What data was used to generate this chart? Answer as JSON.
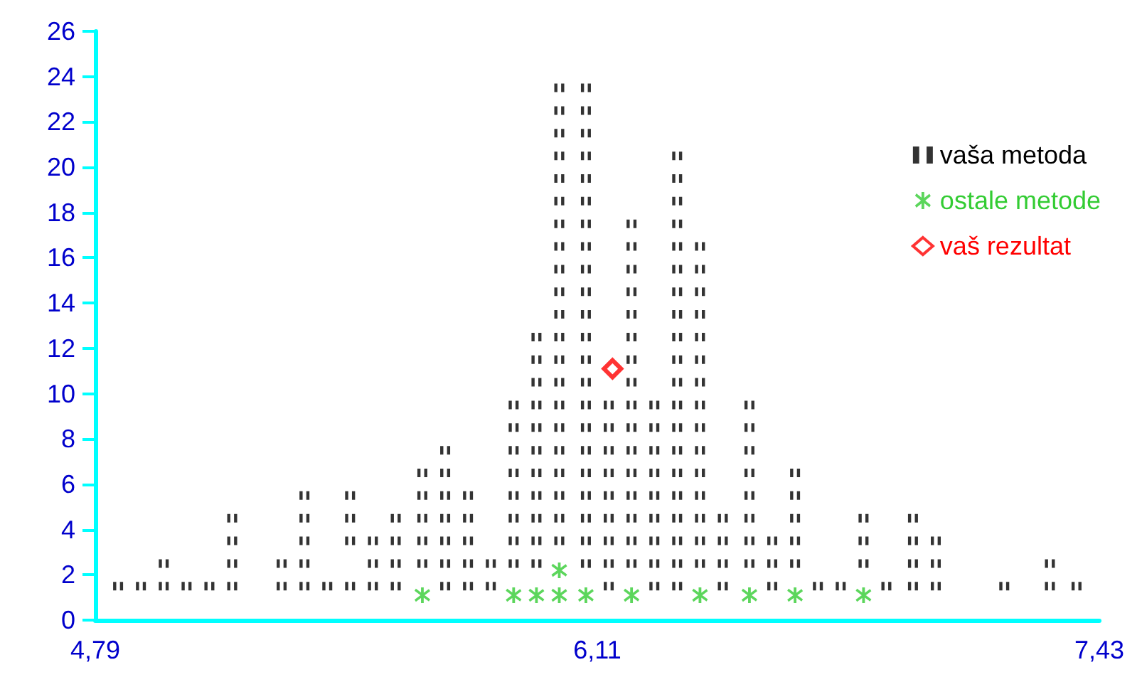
{
  "chart_data": {
    "type": "scatter",
    "xlim": [
      4.79,
      7.43
    ],
    "xticks": [
      {
        "value": 4.79,
        "label": "4,79"
      },
      {
        "value": 6.11,
        "label": "6,11"
      },
      {
        "value": 7.43,
        "label": "7,43"
      }
    ],
    "ylim": [
      0,
      26
    ],
    "yticks": [
      0,
      2,
      4,
      6,
      8,
      10,
      12,
      14,
      16,
      18,
      20,
      22,
      24,
      26
    ],
    "grid": false,
    "legend": "top right",
    "series": [
      {
        "name": "vaša metoda",
        "color": "#000000",
        "marker": "square",
        "x": [
          4.85,
          4.91,
          4.97,
          4.97,
          5.03,
          5.09,
          5.15,
          5.15,
          5.15,
          5.15,
          5.28,
          5.28,
          5.34,
          5.34,
          5.34,
          5.34,
          5.34,
          5.4,
          5.46,
          5.46,
          5.46,
          5.46,
          5.52,
          5.52,
          5.52,
          5.58,
          5.58,
          5.58,
          5.58,
          5.65,
          5.65,
          5.65,
          5.65,
          5.65,
          5.71,
          5.71,
          5.71,
          5.71,
          5.71,
          5.71,
          5.71,
          5.77,
          5.77,
          5.77,
          5.77,
          5.77,
          5.83,
          5.83,
          5.89,
          5.89,
          5.89,
          5.89,
          5.89,
          5.89,
          5.89,
          5.89,
          5.95,
          5.95,
          5.95,
          5.95,
          5.95,
          5.95,
          5.95,
          5.95,
          5.95,
          5.95,
          5.95,
          6.01,
          6.01,
          6.01,
          6.01,
          6.01,
          6.01,
          6.01,
          6.01,
          6.01,
          6.01,
          6.01,
          6.01,
          6.01,
          6.01,
          6.01,
          6.01,
          6.01,
          6.01,
          6.01,
          6.01,
          6.01,
          6.08,
          6.08,
          6.08,
          6.08,
          6.08,
          6.08,
          6.08,
          6.08,
          6.08,
          6.08,
          6.08,
          6.08,
          6.08,
          6.08,
          6.08,
          6.08,
          6.08,
          6.08,
          6.08,
          6.08,
          6.08,
          6.08,
          6.14,
          6.14,
          6.14,
          6.14,
          6.14,
          6.14,
          6.14,
          6.14,
          6.14,
          6.2,
          6.2,
          6.2,
          6.2,
          6.2,
          6.2,
          6.2,
          6.2,
          6.2,
          6.2,
          6.2,
          6.2,
          6.2,
          6.2,
          6.2,
          6.2,
          6.26,
          6.26,
          6.26,
          6.26,
          6.26,
          6.26,
          6.26,
          6.26,
          6.26,
          6.32,
          6.32,
          6.32,
          6.32,
          6.32,
          6.32,
          6.32,
          6.32,
          6.32,
          6.32,
          6.32,
          6.32,
          6.32,
          6.32,
          6.32,
          6.32,
          6.32,
          6.32,
          6.32,
          6.32,
          6.38,
          6.38,
          6.38,
          6.38,
          6.38,
          6.38,
          6.38,
          6.38,
          6.38,
          6.38,
          6.38,
          6.38,
          6.38,
          6.38,
          6.38,
          6.44,
          6.44,
          6.44,
          6.44,
          6.51,
          6.51,
          6.51,
          6.51,
          6.51,
          6.51,
          6.51,
          6.51,
          6.57,
          6.57,
          6.57,
          6.63,
          6.63,
          6.63,
          6.63,
          6.63,
          6.69,
          6.75,
          6.81,
          6.81,
          6.81,
          6.87,
          6.94,
          6.94,
          6.94,
          6.94,
          7.0,
          7.0,
          7.0,
          7.18,
          7.3,
          7.3,
          7.37
        ],
        "values": [
          1.5,
          1.5,
          1.5,
          2.5,
          1.5,
          1.5,
          1.5,
          2.5,
          3.5,
          4.5,
          1.5,
          2.5,
          1.5,
          2.5,
          3.5,
          4.5,
          5.5,
          1.5,
          1.5,
          3.5,
          4.5,
          5.5,
          1.5,
          2.5,
          3.5,
          1.5,
          2.5,
          3.5,
          4.5,
          2.5,
          3.5,
          4.5,
          5.5,
          6.5,
          1.5,
          2.5,
          3.5,
          4.5,
          5.5,
          6.5,
          7.5,
          1.5,
          2.5,
          3.5,
          4.5,
          5.5,
          1.5,
          2.5,
          2.5,
          3.5,
          4.5,
          5.5,
          6.5,
          7.5,
          8.5,
          9.5,
          2.5,
          3.5,
          4.5,
          5.5,
          6.5,
          7.5,
          8.5,
          9.5,
          10.5,
          11.5,
          12.5,
          3.5,
          4.5,
          5.5,
          6.5,
          7.5,
          8.5,
          9.5,
          10.5,
          11.5,
          12.5,
          13.5,
          14.5,
          15.5,
          16.5,
          17.5,
          18.5,
          19.5,
          20.5,
          21.5,
          22.5,
          23.5,
          2.5,
          3.5,
          4.5,
          5.5,
          6.5,
          7.5,
          8.5,
          9.5,
          10.5,
          11.5,
          12.5,
          13.5,
          14.5,
          15.5,
          16.5,
          17.5,
          18.5,
          19.5,
          20.5,
          21.5,
          22.5,
          23.5,
          1.5,
          2.5,
          3.5,
          4.5,
          5.5,
          6.5,
          7.5,
          8.5,
          9.5,
          2.5,
          3.5,
          4.5,
          5.5,
          6.5,
          7.5,
          8.5,
          9.5,
          10.5,
          11.5,
          12.5,
          13.5,
          14.5,
          15.5,
          16.5,
          17.5,
          1.5,
          2.5,
          3.5,
          4.5,
          5.5,
          6.5,
          7.5,
          8.5,
          9.5,
          1.5,
          2.5,
          3.5,
          4.5,
          5.5,
          6.5,
          7.5,
          8.5,
          9.5,
          10.5,
          11.5,
          12.5,
          13.5,
          14.5,
          15.5,
          16.5,
          17.5,
          18.5,
          19.5,
          20.5,
          2.5,
          3.5,
          4.5,
          5.5,
          6.5,
          7.5,
          8.5,
          9.5,
          10.5,
          11.5,
          12.5,
          13.5,
          14.5,
          15.5,
          16.5,
          1.5,
          2.5,
          3.5,
          4.5,
          2.5,
          3.5,
          4.5,
          5.5,
          6.5,
          7.5,
          8.5,
          9.5,
          1.5,
          2.5,
          3.5,
          2.5,
          3.5,
          4.5,
          5.5,
          6.5,
          1.5,
          1.5,
          2.5,
          3.5,
          4.5,
          1.5,
          1.5,
          2.5,
          3.5,
          4.5,
          1.5,
          2.5,
          3.5,
          1.5,
          1.5,
          2.5,
          1.5
        ]
      },
      {
        "name": "ostale metode",
        "color": "#33cc33",
        "marker": "cross",
        "x": [
          5.65,
          5.89,
          5.95,
          6.01,
          6.01,
          6.08,
          6.2,
          6.38,
          6.51,
          6.63,
          6.81
        ],
        "values": [
          1.1,
          1.1,
          1.1,
          1.1,
          2.2,
          1.1,
          1.1,
          1.1,
          1.1,
          1.1,
          1.1
        ]
      },
      {
        "name": "vaš rezultat",
        "color": "#ff0000",
        "marker": "diamond",
        "x": [
          6.15
        ],
        "values": [
          11.1
        ]
      }
    ]
  }
}
